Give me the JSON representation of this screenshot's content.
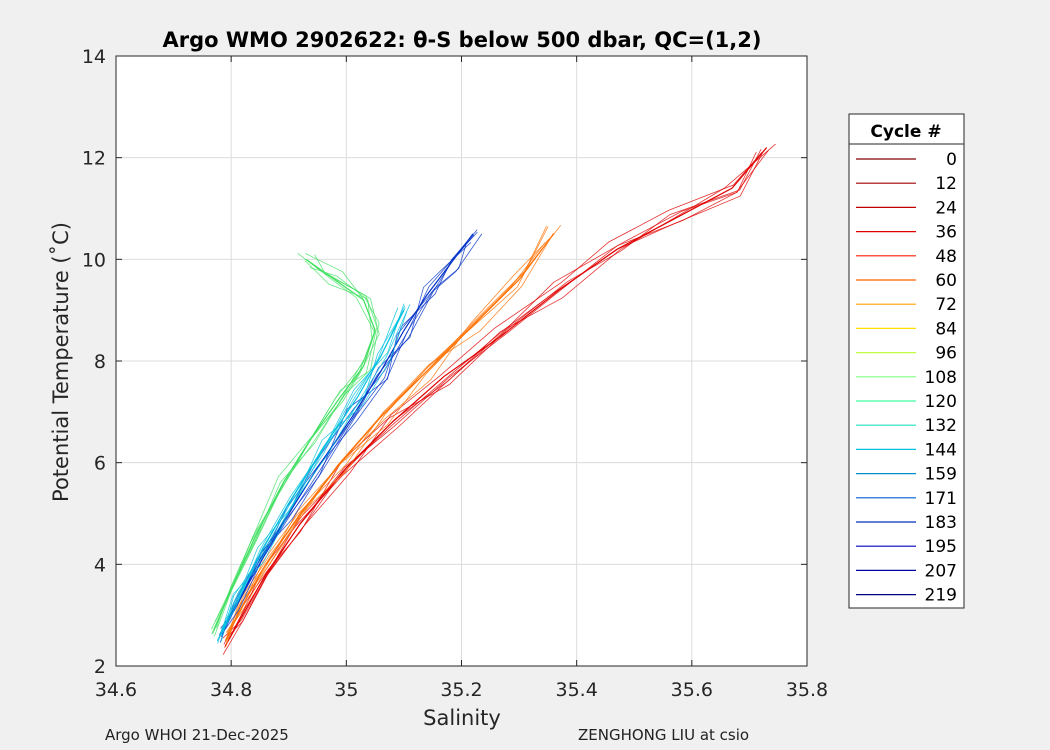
{
  "chart_data": {
    "type": "line",
    "title": "Argo WMO 2902622: θ-S below 500 dbar,  QC=(1,2)",
    "xlabel": "Salinity",
    "ylabel": "Potential Temperature (˚C)",
    "xlim": [
      34.6,
      35.8
    ],
    "ylim": [
      2,
      14
    ],
    "xticks": [
      "34.6",
      "34.8",
      "35",
      "35.2",
      "35.4",
      "35.6",
      "35.8"
    ],
    "yticks": [
      "2",
      "4",
      "6",
      "8",
      "10",
      "12",
      "14"
    ],
    "grid": true,
    "legend": {
      "title": "Cycle #",
      "position": "right",
      "entries": [
        {
          "label": "0",
          "color": "#7f0000"
        },
        {
          "label": "12",
          "color": "#a00000"
        },
        {
          "label": "24",
          "color": "#c00000"
        },
        {
          "label": "36",
          "color": "#e00000"
        },
        {
          "label": "48",
          "color": "#ff2000"
        },
        {
          "label": "60",
          "color": "#ff6000"
        },
        {
          "label": "72",
          "color": "#ffa000"
        },
        {
          "label": "84",
          "color": "#ffe000"
        },
        {
          "label": "96",
          "color": "#c0ff40"
        },
        {
          "label": "108",
          "color": "#80ff80"
        },
        {
          "label": "120",
          "color": "#40ffa0"
        },
        {
          "label": "132",
          "color": "#20e0c0"
        },
        {
          "label": "144",
          "color": "#00c0e0"
        },
        {
          "label": "159",
          "color": "#0090c8"
        },
        {
          "label": "171",
          "color": "#0060d0"
        },
        {
          "label": "183",
          "color": "#0030c0"
        },
        {
          "label": "195",
          "color": "#0000c0"
        },
        {
          "label": "207",
          "color": "#0000a0"
        },
        {
          "label": "219",
          "color": "#000080"
        }
      ]
    },
    "series": [
      {
        "name": "red profiles (early cycles)",
        "color": "#e00000",
        "x": [
          34.79,
          34.82,
          34.86,
          34.92,
          35.0,
          35.08,
          35.17,
          35.27,
          35.37,
          35.47,
          35.57,
          35.67,
          35.73
        ],
        "y": [
          2.4,
          3.0,
          3.8,
          4.8,
          5.9,
          6.8,
          7.7,
          8.5,
          9.4,
          10.2,
          10.8,
          11.4,
          12.2
        ]
      },
      {
        "name": "orange profiles",
        "color": "#ff7000",
        "x": [
          34.79,
          34.82,
          34.86,
          34.92,
          34.99,
          35.06,
          35.14,
          35.22,
          35.3,
          35.36
        ],
        "y": [
          2.5,
          3.2,
          4.0,
          5.0,
          6.0,
          6.9,
          7.8,
          8.7,
          9.6,
          10.5
        ]
      },
      {
        "name": "blue profiles (late cycles)",
        "color": "#0030c8",
        "x": [
          34.78,
          34.81,
          34.85,
          34.9,
          34.95,
          35.01,
          35.06,
          35.1,
          35.14,
          35.18,
          35.22
        ],
        "y": [
          2.6,
          3.2,
          4.1,
          5.0,
          5.9,
          6.9,
          7.8,
          8.6,
          9.3,
          9.9,
          10.5
        ]
      },
      {
        "name": "cyan profiles",
        "color": "#00c0e0",
        "x": [
          34.78,
          34.81,
          34.85,
          34.9,
          34.96,
          35.02,
          35.06,
          35.1
        ],
        "y": [
          2.6,
          3.3,
          4.2,
          5.2,
          6.3,
          7.3,
          8.1,
          9.0
        ]
      },
      {
        "name": "green profiles (mid cycles)",
        "color": "#40e060",
        "x": [
          34.77,
          34.8,
          34.84,
          34.89,
          34.94,
          34.99,
          35.03,
          35.05,
          35.03,
          34.98,
          34.93
        ],
        "y": [
          2.7,
          3.5,
          4.5,
          5.6,
          6.5,
          7.3,
          7.9,
          8.6,
          9.2,
          9.6,
          10.0
        ]
      }
    ]
  },
  "footer": {
    "left": "Argo WHOI 21-Dec-2025",
    "right": "ZENGHONG LIU at csio"
  }
}
